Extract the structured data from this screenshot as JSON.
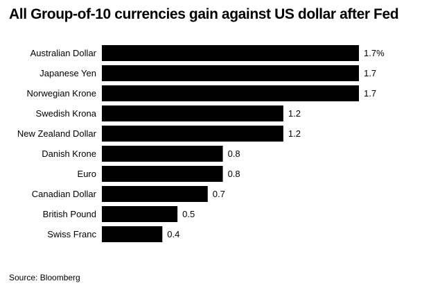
{
  "title": "All Group-of-10 currencies gain against US dollar after Fed",
  "source": "Source: Bloomberg",
  "chart_data": {
    "type": "bar",
    "orientation": "horizontal",
    "title": "All Group-of-10 currencies gain against US dollar after Fed",
    "xlabel": "",
    "ylabel": "",
    "grid": false,
    "xlim": [
      0,
      1.7
    ],
    "unit": "%",
    "bar_color": "#000000",
    "categories": [
      "Australian Dollar",
      "Japanese Yen",
      "Norwegian Krone",
      "Swedish Krona",
      "New Zealand Dollar",
      "Danish Krone",
      "Euro",
      "Canadian Dollar",
      "British Pound",
      "Swiss Franc"
    ],
    "values": [
      1.7,
      1.7,
      1.7,
      1.2,
      1.2,
      0.8,
      0.8,
      0.7,
      0.5,
      0.4
    ],
    "value_labels": [
      "1.7%",
      "1.7",
      "1.7",
      "1.2",
      "1.2",
      "0.8",
      "0.8",
      "0.7",
      "0.5",
      "0.4"
    ]
  }
}
